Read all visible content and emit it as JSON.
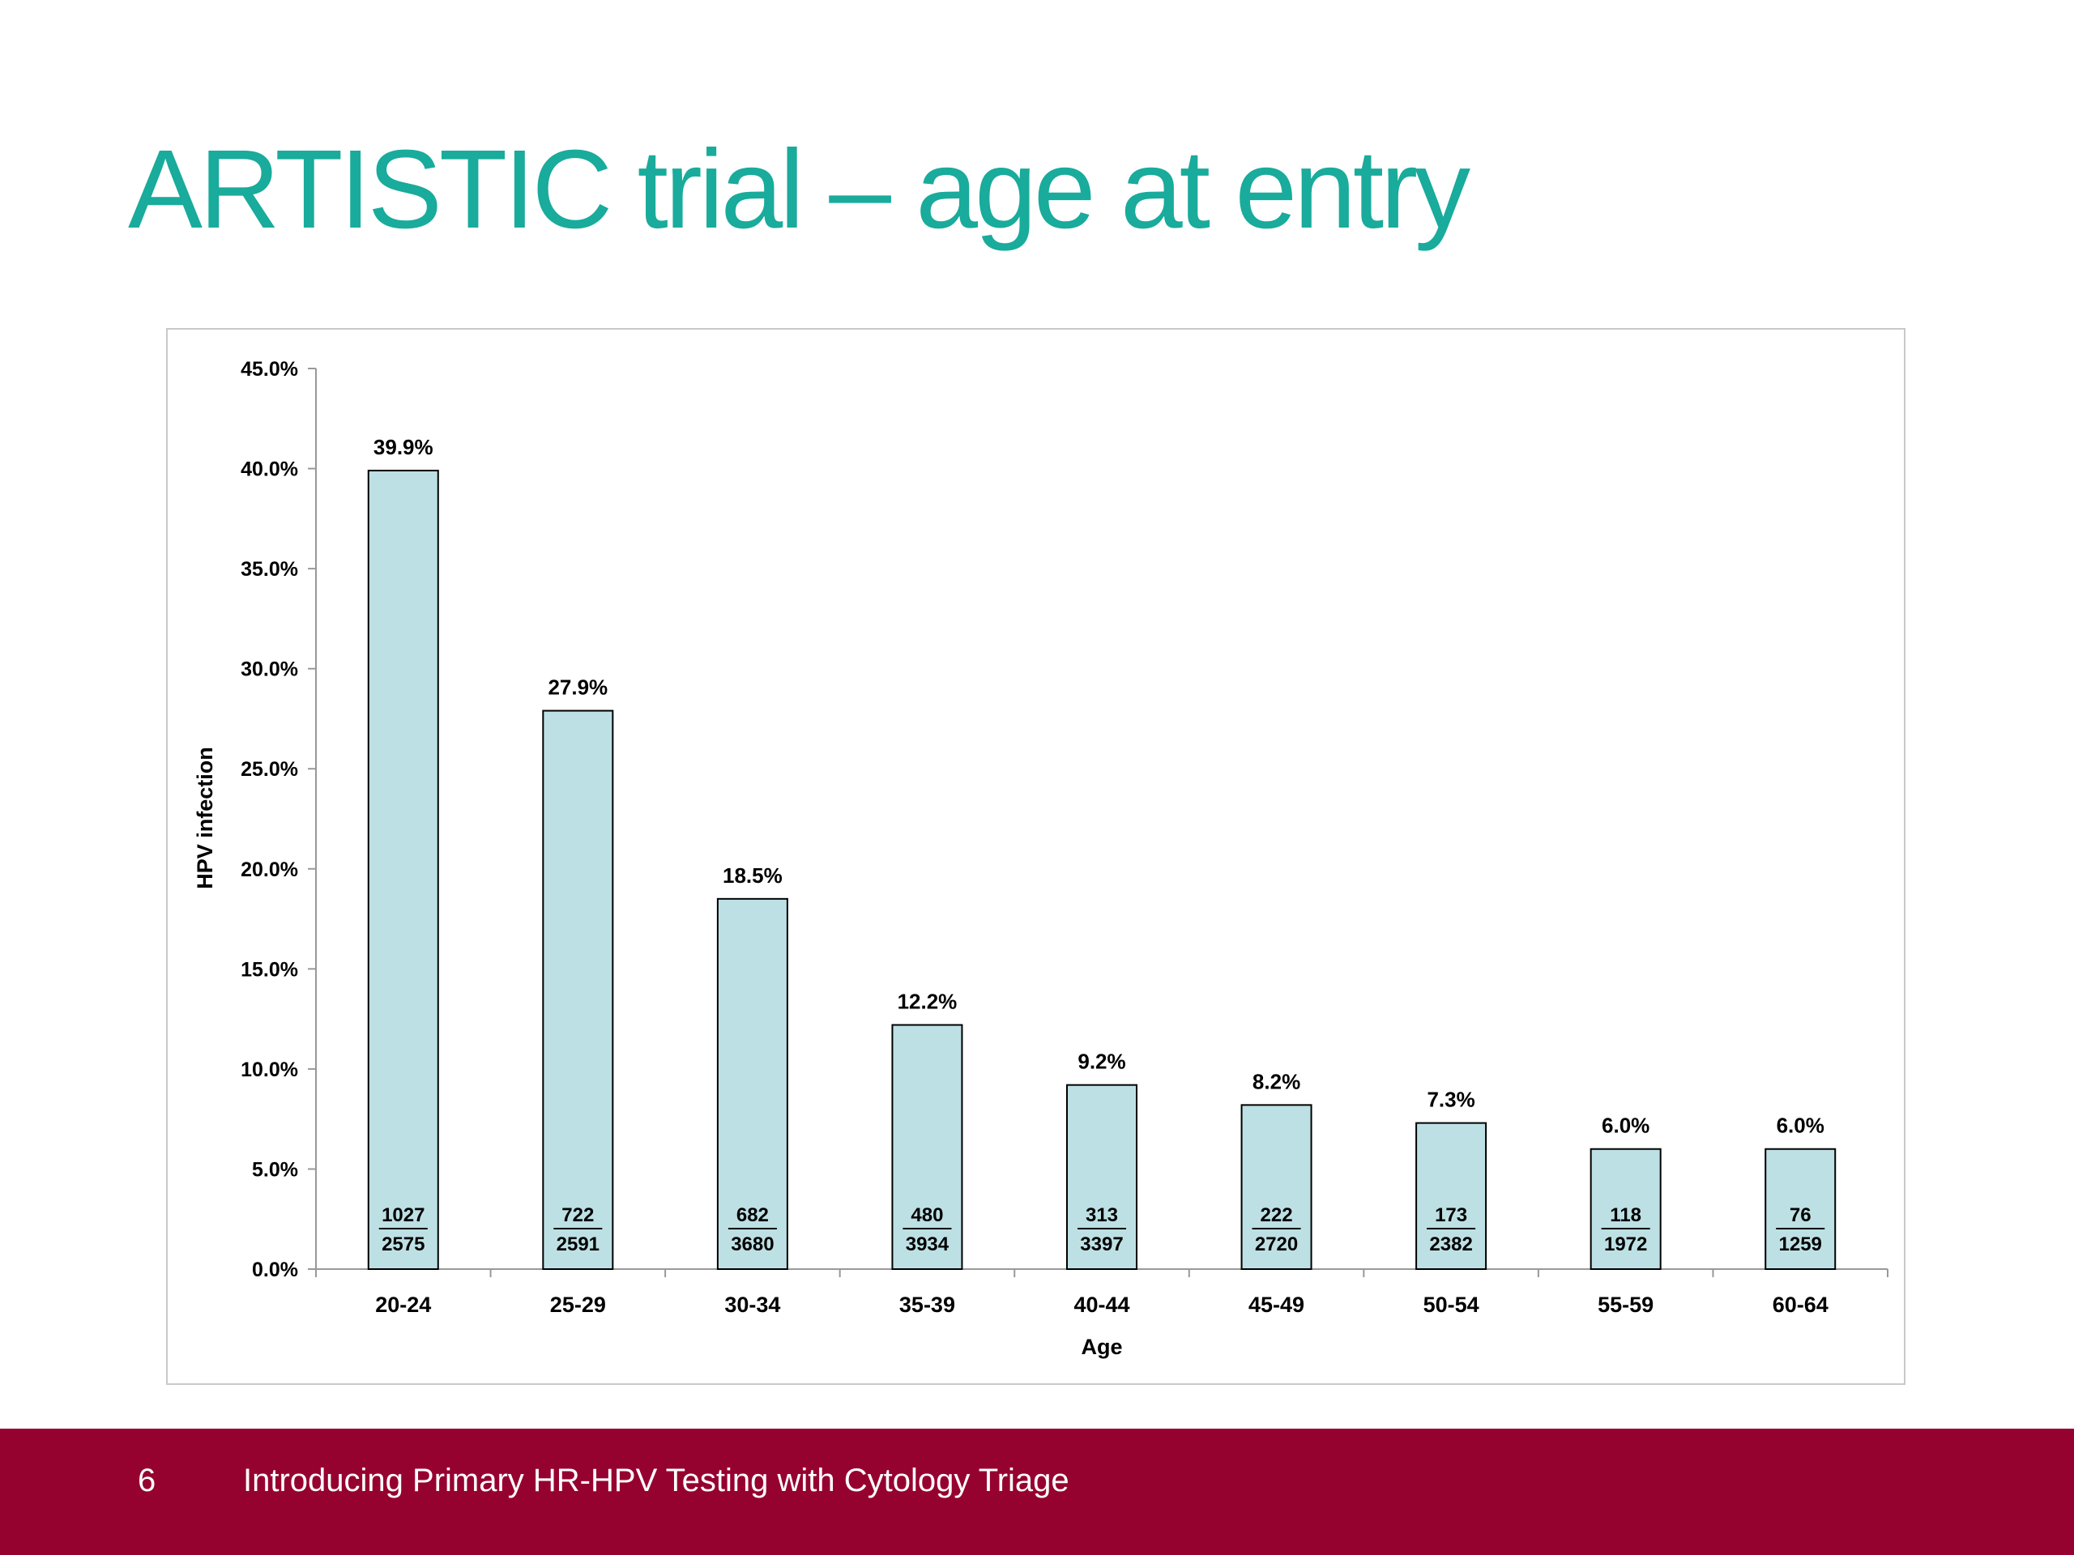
{
  "slide": {
    "title": "ARTISTIC trial – age at entry",
    "page_number": "6",
    "footer_text": "Introducing Primary HR-HPV Testing with Cytology Triage"
  },
  "colors": {
    "title": "#19ab9b",
    "bar_fill": "#bde0e4",
    "bar_stroke": "#000000",
    "footer_bg": "#960230",
    "axis": "#999999"
  },
  "chart_data": {
    "type": "bar",
    "xlabel": "Age",
    "ylabel": "HPV infection",
    "ylim": [
      0,
      45
    ],
    "y_ticks": [
      0,
      5,
      10,
      15,
      20,
      25,
      30,
      35,
      40,
      45
    ],
    "y_tick_labels": [
      "0.0%",
      "5.0%",
      "10.0%",
      "15.0%",
      "20.0%",
      "25.0%",
      "30.0%",
      "35.0%",
      "40.0%",
      "45.0%"
    ],
    "grid": false,
    "legend": "none",
    "categories": [
      "20-24",
      "25-29",
      "30-34",
      "35-39",
      "40-44",
      "45-49",
      "50-54",
      "55-59",
      "60-64"
    ],
    "values": [
      39.9,
      27.9,
      18.5,
      12.2,
      9.2,
      8.2,
      7.3,
      6.0,
      6.0
    ],
    "value_labels": [
      "39.9%",
      "27.9%",
      "18.5%",
      "12.2%",
      "9.2%",
      "8.2%",
      "7.3%",
      "6.0%",
      "6.0%"
    ],
    "numerators": [
      "1027",
      "722",
      "682",
      "480",
      "313",
      "222",
      "173",
      "118",
      "76"
    ],
    "denominators": [
      "2575",
      "2591",
      "3680",
      "3934",
      "3397",
      "2720",
      "2382",
      "1972",
      "1259"
    ]
  }
}
